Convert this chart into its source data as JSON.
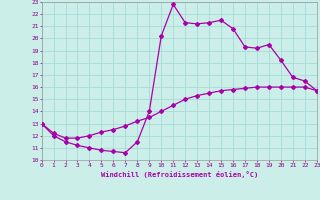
{
  "xlabel": "Windchill (Refroidissement éolien,°C)",
  "background_color": "#cceee8",
  "grid_color": "#aaddda",
  "line_color": "#aa00aa",
  "xmin": 0,
  "xmax": 23,
  "ymin": 10,
  "ymax": 23,
  "line1_x": [
    0,
    1,
    2,
    3,
    4,
    5,
    6,
    7,
    8,
    9,
    10,
    11,
    12,
    13,
    14,
    15,
    16,
    17,
    18,
    19,
    20,
    21,
    22,
    23
  ],
  "line1_y": [
    13.0,
    12.0,
    11.5,
    11.2,
    11.0,
    10.8,
    10.7,
    10.6,
    11.5,
    14.0,
    20.2,
    22.8,
    21.3,
    21.2,
    21.3,
    21.5,
    20.8,
    19.3,
    19.2,
    19.5,
    18.2,
    16.8,
    16.5,
    15.7
  ],
  "line2_x": [
    0,
    1,
    2,
    3,
    4,
    5,
    6,
    7,
    8,
    9,
    10,
    11,
    12,
    13,
    14,
    15,
    16,
    17,
    18,
    19,
    20,
    21,
    22,
    23
  ],
  "line2_y": [
    13.0,
    12.2,
    11.8,
    11.8,
    12.0,
    12.3,
    12.5,
    12.8,
    13.2,
    13.5,
    14.0,
    14.5,
    15.0,
    15.3,
    15.5,
    15.7,
    15.8,
    15.9,
    16.0,
    16.0,
    16.0,
    16.0,
    16.0,
    15.7
  ]
}
